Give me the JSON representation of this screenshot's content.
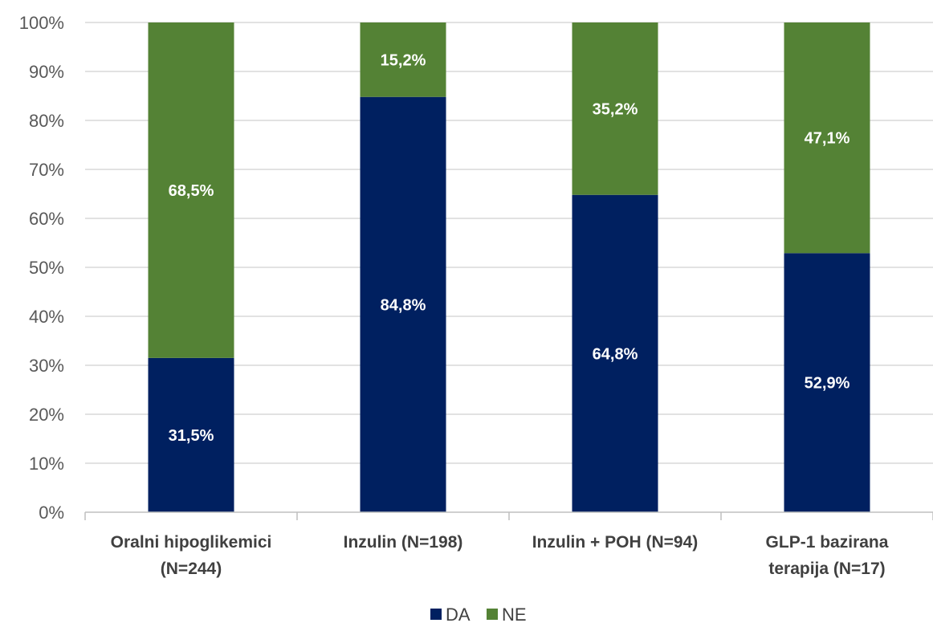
{
  "chart_data": {
    "type": "bar",
    "stacked": true,
    "percent": true,
    "categories": [
      [
        "Oralni hipoglikemici",
        "(N=244)"
      ],
      [
        "Inzulin (N=198)"
      ],
      [
        "Inzulin + POH (N=94)"
      ],
      [
        "GLP-1 bazirana",
        "terapija (N=17)"
      ]
    ],
    "series": [
      {
        "name": "DA",
        "color": "#002060",
        "values": [
          31.5,
          84.8,
          64.8,
          52.9
        ],
        "labels": [
          "31,5%",
          "84,8%",
          "64,8%",
          "52,9%"
        ]
      },
      {
        "name": "NE",
        "color": "#548235",
        "values": [
          68.5,
          15.2,
          35.2,
          47.1
        ],
        "labels": [
          "68,5%",
          "15,2%",
          "35,2%",
          "47,1%"
        ]
      }
    ],
    "ylim": [
      0,
      100
    ],
    "yticks": [
      "0%",
      "10%",
      "20%",
      "30%",
      "40%",
      "50%",
      "60%",
      "70%",
      "80%",
      "90%",
      "100%"
    ],
    "grid": true,
    "legend_position": "bottom",
    "title": "",
    "xlabel": "",
    "ylabel": ""
  }
}
